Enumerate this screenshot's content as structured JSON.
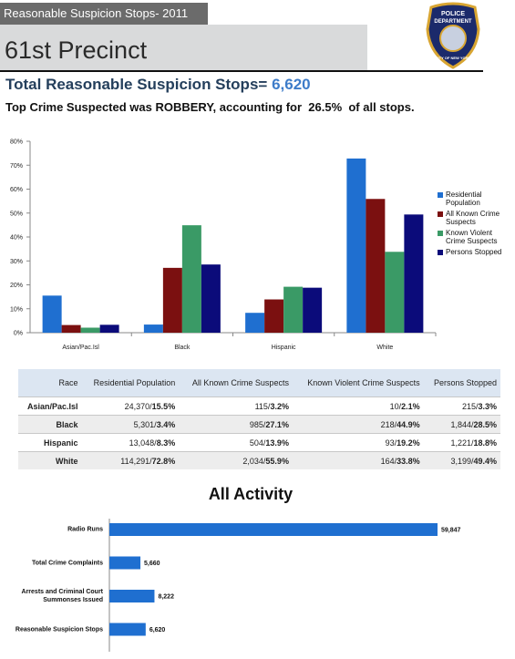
{
  "header": {
    "tag": "Reasonable Suspicion Stops- 2011",
    "precinct": "61st Precinct",
    "badge": {
      "top": "POLICE",
      "middle": "DEPARTMENT",
      "bottom": "CITY OF NEW YORK"
    }
  },
  "total": {
    "label": "Total Reasonable Suspicion Stops=",
    "value": "6,620"
  },
  "subtitle": "Top Crime Suspected was ROBBERY, accounting for  26.5%  of all stops.",
  "table": {
    "header": [
      "Race",
      "Residential Population",
      "All Known Crime Suspects",
      "Known Violent Crime Suspects",
      "Persons Stopped"
    ],
    "rows": [
      [
        "Asian/Pac.Isl",
        [
          "24,370/",
          "15.5%"
        ],
        [
          "115/",
          "3.2%"
        ],
        [
          "10/",
          "2.1%"
        ],
        [
          "215/",
          "3.3%"
        ]
      ],
      [
        "Black",
        [
          "5,301/",
          "3.4%"
        ],
        [
          "985/",
          "27.1%"
        ],
        [
          "218/",
          "44.9%"
        ],
        [
          "1,844/",
          "28.5%"
        ]
      ],
      [
        "Hispanic",
        [
          "13,048/",
          "8.3%"
        ],
        [
          "504/",
          "13.9%"
        ],
        [
          "93/",
          "19.2%"
        ],
        [
          "1,221/",
          "18.8%"
        ]
      ],
      [
        "White",
        [
          "114,291/",
          "72.8%"
        ],
        [
          "2,034/",
          "55.9%"
        ],
        [
          "164/",
          "33.8%"
        ],
        [
          "3,199/",
          "49.4%"
        ]
      ]
    ]
  },
  "chart_data": [
    {
      "type": "bar",
      "categories": [
        "Asian/Pac.Isl",
        "Black",
        "Hispanic",
        "White"
      ],
      "series": [
        {
          "name": "Residential Population",
          "color": "#1f6fd0",
          "values": [
            15.5,
            3.4,
            8.3,
            72.8
          ]
        },
        {
          "name": "All Known Crime Suspects",
          "color": "#7b1010",
          "values": [
            3.2,
            27.1,
            13.9,
            55.9
          ]
        },
        {
          "name": "Known Violent Crime Suspects",
          "color": "#3a9a66",
          "values": [
            2.1,
            44.9,
            19.2,
            33.8
          ]
        },
        {
          "name": "Persons Stopped",
          "color": "#0b0b7a",
          "values": [
            3.3,
            28.5,
            18.8,
            49.4
          ]
        }
      ],
      "ylim": [
        0,
        80
      ],
      "yticks": [
        {
          "value": 0,
          "label": "0%"
        },
        {
          "value": 10,
          "label": "10%"
        },
        {
          "value": 20,
          "label": "20%"
        },
        {
          "value": 30,
          "label": "30%"
        },
        {
          "value": 40,
          "label": "40%"
        },
        {
          "value": 50,
          "label": "50%"
        },
        {
          "value": 60,
          "label": "60%"
        },
        {
          "value": 70,
          "label": "70%"
        },
        {
          "value": 80,
          "label": "80%"
        }
      ],
      "grid": false,
      "legend": "right"
    },
    {
      "type": "barh",
      "title": "All Activity",
      "categories": [
        "Radio Runs",
        "Total Crime Complaints",
        "Arrests and Criminal Court Summonses Issued",
        "Reasonable Suspicion Stops"
      ],
      "values": [
        59847,
        5660,
        8222,
        6620
      ],
      "value_labels": [
        "59,847",
        "5,660",
        "8,222",
        "6,620"
      ],
      "color": "#1f6fd0"
    }
  ]
}
